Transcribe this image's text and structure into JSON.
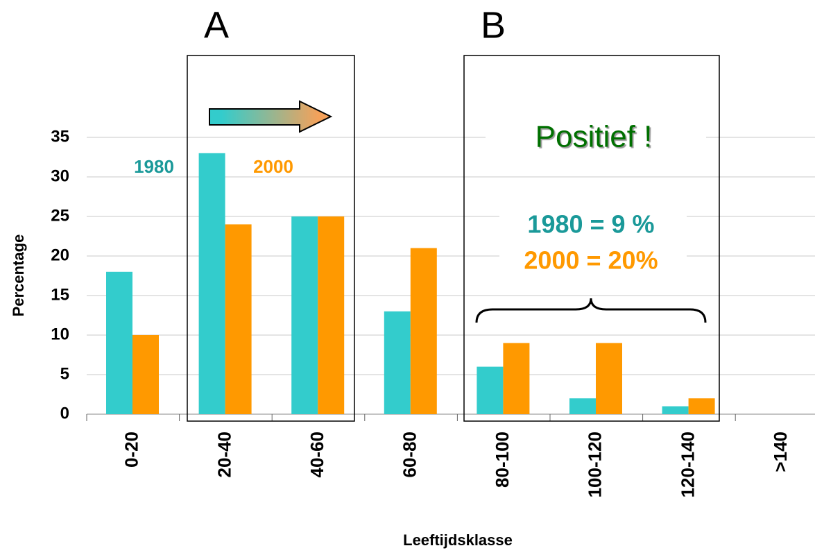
{
  "chart_data": {
    "type": "bar",
    "categories": [
      "0-20",
      "20-40",
      "40-60",
      "60-80",
      "80-100",
      "100-120",
      "120-140",
      ">140"
    ],
    "series": [
      {
        "name": "1980",
        "color": "#33cccc",
        "values": [
          18,
          33,
          25,
          13,
          6,
          2,
          1,
          0
        ]
      },
      {
        "name": "2000",
        "color": "#ff9900",
        "values": [
          10,
          24,
          25,
          21,
          9,
          9,
          2,
          0
        ]
      }
    ],
    "ylim": [
      0,
      35
    ],
    "yticks": [
      0,
      5,
      10,
      15,
      20,
      25,
      30,
      35
    ],
    "grid": true,
    "y_label": "Percentage",
    "x_label": "Leeftijdsklasse",
    "annotations": [
      "A",
      "B",
      "Positief !",
      "1980 = 9 %",
      "2000 = 20%"
    ]
  }
}
